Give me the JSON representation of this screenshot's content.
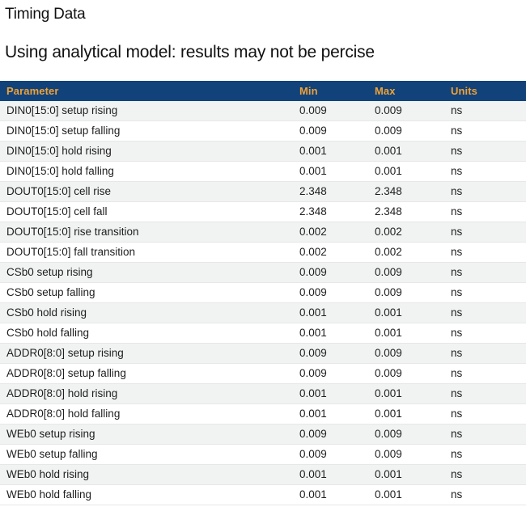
{
  "page": {
    "title": "Timing Data",
    "subtitle": "Using analytical model: results may not be percise"
  },
  "table": {
    "columns": {
      "parameter": "Parameter",
      "min": "Min",
      "max": "Max",
      "units": "Units"
    },
    "rows": [
      {
        "parameter": "DIN0[15:0] setup rising",
        "min": "0.009",
        "max": "0.009",
        "units": "ns"
      },
      {
        "parameter": "DIN0[15:0] setup falling",
        "min": "0.009",
        "max": "0.009",
        "units": "ns"
      },
      {
        "parameter": "DIN0[15:0] hold rising",
        "min": "0.001",
        "max": "0.001",
        "units": "ns"
      },
      {
        "parameter": "DIN0[15:0] hold falling",
        "min": "0.001",
        "max": "0.001",
        "units": "ns"
      },
      {
        "parameter": "DOUT0[15:0] cell rise",
        "min": "2.348",
        "max": "2.348",
        "units": "ns"
      },
      {
        "parameter": "DOUT0[15:0] cell fall",
        "min": "2.348",
        "max": "2.348",
        "units": "ns"
      },
      {
        "parameter": "DOUT0[15:0] rise transition",
        "min": "0.002",
        "max": "0.002",
        "units": "ns"
      },
      {
        "parameter": "DOUT0[15:0] fall transition",
        "min": "0.002",
        "max": "0.002",
        "units": "ns"
      },
      {
        "parameter": "CSb0 setup rising",
        "min": "0.009",
        "max": "0.009",
        "units": "ns"
      },
      {
        "parameter": "CSb0 setup falling",
        "min": "0.009",
        "max": "0.009",
        "units": "ns"
      },
      {
        "parameter": "CSb0 hold rising",
        "min": "0.001",
        "max": "0.001",
        "units": "ns"
      },
      {
        "parameter": "CSb0 hold falling",
        "min": "0.001",
        "max": "0.001",
        "units": "ns"
      },
      {
        "parameter": "ADDR0[8:0] setup rising",
        "min": "0.009",
        "max": "0.009",
        "units": "ns"
      },
      {
        "parameter": "ADDR0[8:0] setup falling",
        "min": "0.009",
        "max": "0.009",
        "units": "ns"
      },
      {
        "parameter": "ADDR0[8:0] hold rising",
        "min": "0.001",
        "max": "0.001",
        "units": "ns"
      },
      {
        "parameter": "ADDR0[8:0] hold falling",
        "min": "0.001",
        "max": "0.001",
        "units": "ns"
      },
      {
        "parameter": "WEb0 setup rising",
        "min": "0.009",
        "max": "0.009",
        "units": "ns"
      },
      {
        "parameter": "WEb0 setup falling",
        "min": "0.009",
        "max": "0.009",
        "units": "ns"
      },
      {
        "parameter": "WEb0 hold rising",
        "min": "0.001",
        "max": "0.001",
        "units": "ns"
      },
      {
        "parameter": "WEb0 hold falling",
        "min": "0.001",
        "max": "0.001",
        "units": "ns"
      }
    ]
  },
  "colors": {
    "header_background": "#11427a",
    "header_text": "#f0a235",
    "row_stripe": "#f1f2f2",
    "row_border": "#e7e7e7",
    "body_text": "#1e1e1e"
  }
}
